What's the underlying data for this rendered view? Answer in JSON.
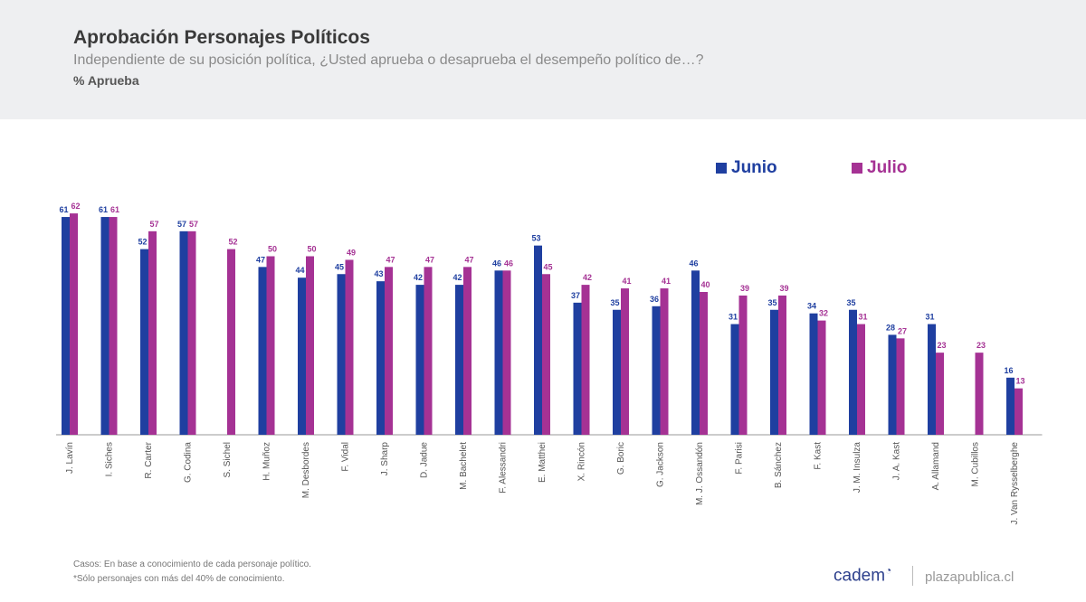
{
  "header": {
    "title": "Aprobación Personajes Políticos",
    "subtitle": "Independiente de su posición política, ¿Usted aprueba o desaprueba el desempeño político de…?",
    "unit": "% Aprueba"
  },
  "colors": {
    "junio": "#1f3fa0",
    "julio": "#a53294",
    "axis": "#999999"
  },
  "chart_data": {
    "type": "bar",
    "ylim": [
      0,
      65
    ],
    "categories": [
      "J. Lavín",
      "I. Siches",
      "R. Carter",
      "G. Codina",
      "S. Sichel",
      "H. Muñoz",
      "M. Desbordes",
      "F. Vidal",
      "J. Sharp",
      "D. Jadue",
      "M. Bachelet",
      "F. Alessandri",
      "E. Matthei",
      "X. Rincón",
      "G. Boric",
      "G. Jackson",
      "M. J. Ossandón",
      "F. Parisi",
      "B. Sánchez",
      "F. Kast",
      "J. M. Insulza",
      "J. A. Kast",
      "A. Allamand",
      "M. Cubillos",
      "J. Van Rysselberghe"
    ],
    "series": [
      {
        "name": "Junio",
        "values": [
          61,
          61,
          52,
          57,
          null,
          47,
          44,
          45,
          43,
          42,
          42,
          46,
          53,
          37,
          35,
          36,
          46,
          31,
          35,
          34,
          35,
          28,
          31,
          null,
          16
        ]
      },
      {
        "name": "Julio",
        "values": [
          62,
          61,
          57,
          57,
          52,
          50,
          50,
          49,
          47,
          47,
          47,
          46,
          45,
          42,
          41,
          41,
          40,
          39,
          39,
          32,
          31,
          27,
          23,
          23,
          13
        ]
      }
    ],
    "legend": "top-right"
  },
  "footer": {
    "note1": "Casos: En base a conocimiento de cada personaje político.",
    "note2": "*Sólo personajes con más del 40% de conocimiento.",
    "brand": "cadem",
    "site": "plazapublica.cl"
  }
}
